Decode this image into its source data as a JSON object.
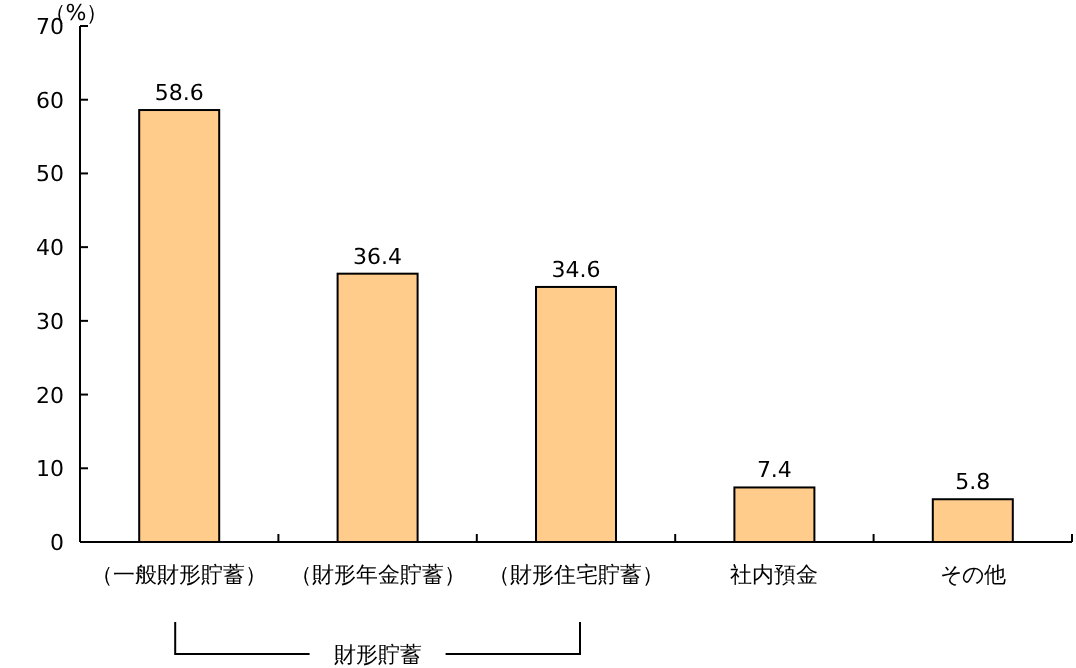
{
  "chart_data": {
    "type": "bar",
    "ylabel": "（%）",
    "categories": [
      "（一般財形貯蓄）",
      "（財形年金貯蓄）",
      "（財形住宅貯蓄）",
      "社内預金",
      "その他"
    ],
    "values": [
      58.6,
      36.4,
      34.6,
      7.4,
      5.8
    ],
    "color": "#ffcc8c",
    "data_labels": true,
    "ylim": [
      0,
      70
    ],
    "yticks": [
      0,
      10,
      20,
      30,
      40,
      50,
      60,
      70
    ],
    "annotations": [
      "財形貯蓄"
    ]
  }
}
